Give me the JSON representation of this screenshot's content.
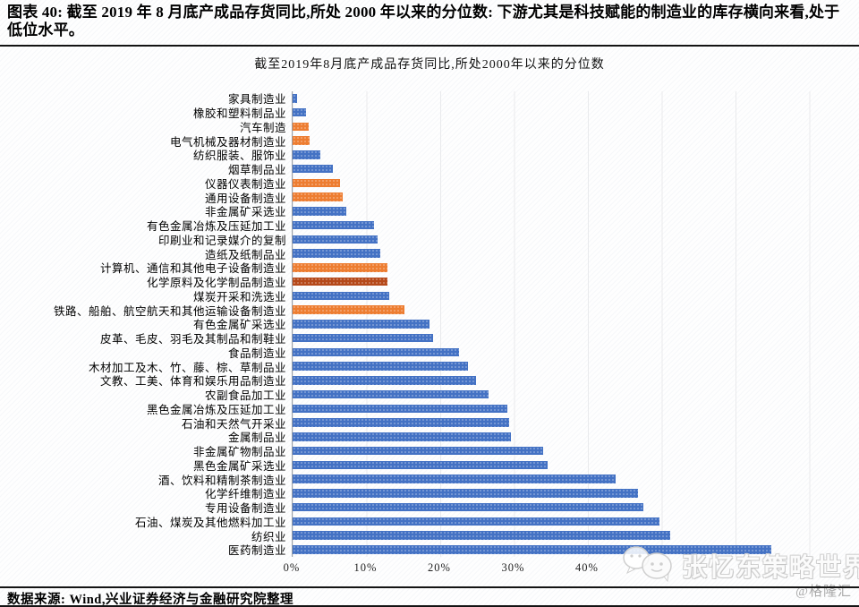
{
  "header": {
    "caption": "图表 40: 截至 2019 年 8 月底产成品存货同比,所处 2000 年以来的分位数: 下游尤其是科技赋能的制造业的库存横向来看,处于低位水平。"
  },
  "chart_data": {
    "type": "bar",
    "orientation": "horizontal",
    "title": "截至2019年8月底产成品存货同比,所处2000年以来的分位数",
    "categories": [
      "家具制造业",
      "橡胶和塑料制品业",
      "汽车制造",
      "电气机械及器材制造业",
      "纺织服装、服饰业",
      "烟草制品业",
      "仪器仪表制造业",
      "通用设备制造业",
      "非金属矿采选业",
      "有色金属冶炼及压延加工业",
      "印刷业和记录媒介的复制",
      "造纸及纸制品业",
      "计算机、通信和其他电子设备制造业",
      "化学原料及化学制品制造业",
      "煤炭开采和洗选业",
      "铁路、船舶、航空航天和其他运输设备制造业",
      "有色金属矿采选业",
      "皮革、毛皮、羽毛及其制品和制鞋业",
      "食品制造业",
      "木材加工及木、竹、藤、棕、草制品业",
      "文教、工美、体育和娱乐用品制造业",
      "农副食品加工业",
      "黑色金属冶炼及压延加工业",
      "石油和天然气开采业",
      "金属制品业",
      "非金属矿物制品业",
      "黑色金属矿采选业",
      "酒、饮料和精制茶制造业",
      "化学纤维制造业",
      "专用设备制造业",
      "石油、煤炭及其他燃料加工业",
      "纺织业",
      "医药制造业"
    ],
    "values": [
      0.6,
      1.8,
      2.2,
      2.3,
      3.8,
      5.5,
      6.4,
      6.8,
      7.3,
      11.0,
      11.5,
      11.9,
      12.8,
      12.8,
      13.1,
      15.2,
      18.5,
      19.0,
      22.5,
      23.8,
      24.9,
      26.5,
      29.1,
      29.3,
      29.6,
      33.9,
      34.5,
      43.8,
      46.8,
      47.5,
      49.7,
      51.1,
      64.9
    ],
    "bar_color_keys": [
      "blue",
      "blue",
      "orange",
      "orange",
      "blue",
      "blue",
      "orange",
      "orange",
      "blue",
      "blue",
      "blue",
      "blue",
      "orange",
      "dark_red",
      "blue",
      "orange",
      "blue",
      "blue",
      "blue",
      "blue",
      "blue",
      "blue",
      "blue",
      "blue",
      "blue",
      "blue",
      "blue",
      "blue",
      "blue",
      "blue",
      "blue",
      "blue",
      "blue"
    ],
    "bar_palette": {
      "blue": "#4472C4",
      "orange": "#ED7D31",
      "dark_red": "#B5491A"
    },
    "xlabel": "",
    "ylabel": "",
    "xlim": [
      0,
      75
    ],
    "xtick_values": [
      0,
      10,
      20,
      30,
      40
    ],
    "xtick_labels": [
      "0%",
      "10%",
      "20%",
      "30%",
      "40%"
    ],
    "grid": true,
    "legend": "none"
  },
  "watermark": {
    "text": "张忆东策略世界",
    "handle": "@格隆汇",
    "logo": "wechat-bubbles-icon"
  },
  "footer": {
    "source": "数据来源: Wind,兴业证券经济与金融研究院整理"
  }
}
